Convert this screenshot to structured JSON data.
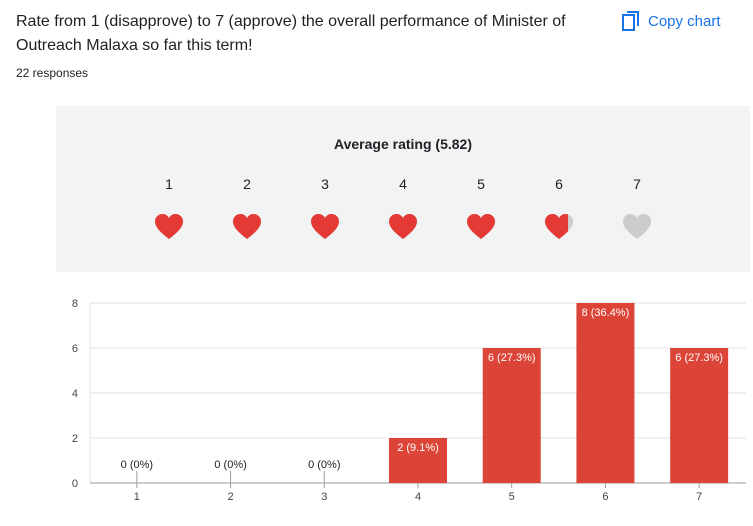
{
  "question": {
    "text": "Rate from 1 (disapprove) to 7 (approve) the overall performance of Minister of Outreach Malaxa so far this term!",
    "copy_label": "Copy chart",
    "copy_icon": "copy-icon",
    "responses": "22 responses"
  },
  "rating_summary": {
    "title": "Average rating (5.82)",
    "average": 5.82,
    "scale": [
      "1",
      "2",
      "3",
      "4",
      "5",
      "6",
      "7"
    ],
    "heart_icon": "heart-icon",
    "filled_color": "#e53935",
    "empty_color": "#cccccc"
  },
  "chart_data": {
    "type": "bar",
    "categories": [
      "1",
      "2",
      "3",
      "4",
      "5",
      "6",
      "7"
    ],
    "values": [
      0,
      0,
      0,
      2,
      6,
      8,
      6
    ],
    "data_labels": [
      "0 (0%)",
      "0 (0%)",
      "0 (0%)",
      "2 (9.1%)",
      "6 (27.3%)",
      "8 (36.4%)",
      "6 (27.3%)"
    ],
    "yticks": [
      0,
      2,
      4,
      6,
      8
    ],
    "ylim": [
      0,
      8
    ],
    "grid": true,
    "bar_color": "#db4437",
    "title": "",
    "xlabel": "",
    "ylabel": ""
  }
}
